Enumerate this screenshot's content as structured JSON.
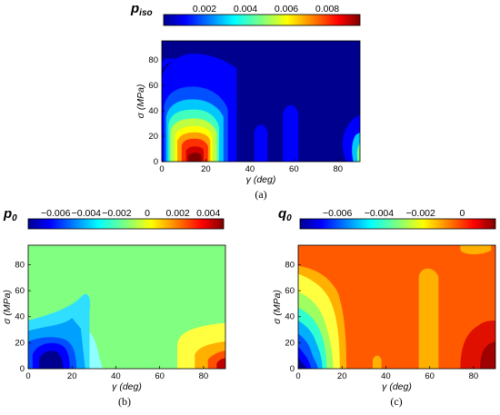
{
  "chart_data": [
    {
      "type": "heatmap",
      "caption": "(a)",
      "variable": "p",
      "variable_sub": "iso",
      "xlabel_sym": "γ",
      "xlabel_unit": "(deg)",
      "ylabel_sym": "σ",
      "ylabel_unit": "(MPa)",
      "xlim": [
        0,
        90
      ],
      "ylim": [
        0,
        95
      ],
      "xticks": [
        0,
        20,
        40,
        60,
        80
      ],
      "yticks": [
        0,
        20,
        40,
        60,
        80
      ],
      "colorbar": {
        "ticks": [
          "0.002",
          "0.004",
          "0.006",
          "0.008"
        ],
        "tick_values": [
          0.002,
          0.004,
          0.006,
          0.008
        ],
        "range": [
          0.0,
          0.0096
        ]
      },
      "grid": false
    },
    {
      "type": "heatmap",
      "caption": "(b)",
      "variable": "p",
      "variable_sub": "0",
      "xlabel_sym": "γ",
      "xlabel_unit": "(deg)",
      "ylabel_sym": "σ",
      "ylabel_unit": "(MPa)",
      "xlim": [
        0,
        90
      ],
      "ylim": [
        0,
        95
      ],
      "xticks": [
        0,
        20,
        40,
        60,
        80
      ],
      "yticks": [
        0,
        20,
        40,
        60,
        80
      ],
      "colorbar": {
        "ticks": [
          "−0.006",
          "−0.004",
          "−0.002",
          "0",
          "0.002",
          "0.004"
        ],
        "tick_values": [
          -0.006,
          -0.004,
          -0.002,
          0,
          0.002,
          0.004
        ],
        "range": [
          -0.0078,
          0.005
        ]
      },
      "grid": false
    },
    {
      "type": "heatmap",
      "caption": "(c)",
      "variable": "q",
      "variable_sub": "0",
      "xlabel_sym": "γ",
      "xlabel_unit": "(deg)",
      "ylabel_sym": "σ",
      "ylabel_unit": "(MPa)",
      "xlim": [
        0,
        90
      ],
      "ylim": [
        0,
        95
      ],
      "xticks": [
        0,
        20,
        40,
        60,
        80
      ],
      "yticks": [
        0,
        20,
        40,
        60,
        80
      ],
      "colorbar": {
        "ticks": [
          "−0.006",
          "−0.004",
          "−0.002",
          "0"
        ],
        "tick_values": [
          -0.006,
          -0.004,
          -0.002,
          0
        ],
        "range": [
          -0.0078,
          0.0016
        ]
      },
      "grid": false
    }
  ]
}
